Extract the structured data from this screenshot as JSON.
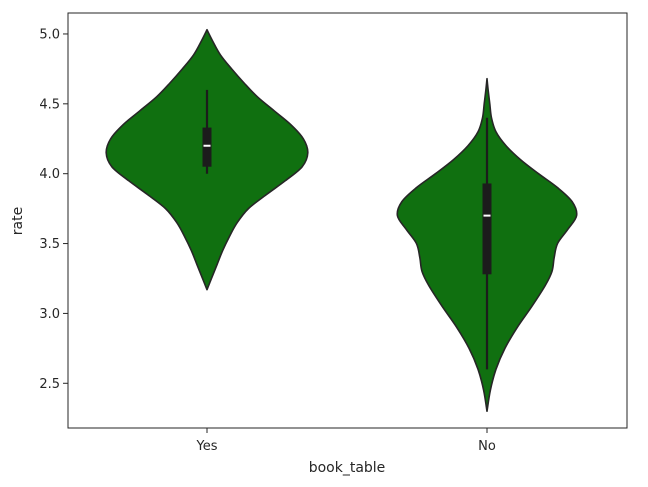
{
  "chart_data": {
    "type": "violin",
    "xlabel": "book_table",
    "ylabel": "rate",
    "categories": [
      "Yes",
      "No"
    ],
    "ylim": [
      2.18,
      5.15
    ],
    "yticks": [
      2.5,
      3.0,
      3.5,
      4.0,
      4.5,
      5.0
    ],
    "ytick_labels": [
      "2.5",
      "3.0",
      "3.5",
      "4.0",
      "4.5",
      "5.0"
    ],
    "grid": false,
    "colors": {
      "fill": "#107010",
      "edge": "#262626",
      "box": "#1c1c1c",
      "median": "#ffffff",
      "axis": "#262626"
    },
    "violins": [
      {
        "category": "Yes",
        "min": 3.17,
        "max": 5.03,
        "whisker_low": 4.0,
        "whisker_high": 4.6,
        "q1": 4.05,
        "median": 4.2,
        "q3": 4.33,
        "profile": [
          [
            3.17,
            0.0
          ],
          [
            3.25,
            0.04
          ],
          [
            3.35,
            0.09
          ],
          [
            3.45,
            0.14
          ],
          [
            3.55,
            0.2
          ],
          [
            3.65,
            0.27
          ],
          [
            3.75,
            0.37
          ],
          [
            3.85,
            0.53
          ],
          [
            3.95,
            0.7
          ],
          [
            4.05,
            0.85
          ],
          [
            4.15,
            0.9
          ],
          [
            4.25,
            0.86
          ],
          [
            4.35,
            0.75
          ],
          [
            4.45,
            0.6
          ],
          [
            4.55,
            0.45
          ],
          [
            4.65,
            0.33
          ],
          [
            4.75,
            0.22
          ],
          [
            4.85,
            0.12
          ],
          [
            4.95,
            0.05
          ],
          [
            5.03,
            0.0
          ]
        ]
      },
      {
        "category": "No",
        "min": 2.3,
        "max": 4.68,
        "whisker_low": 2.6,
        "whisker_high": 4.4,
        "q1": 3.28,
        "median": 3.7,
        "q3": 3.93,
        "profile": [
          [
            2.3,
            0.0
          ],
          [
            2.45,
            0.03
          ],
          [
            2.6,
            0.08
          ],
          [
            2.75,
            0.16
          ],
          [
            2.9,
            0.27
          ],
          [
            3.05,
            0.4
          ],
          [
            3.2,
            0.52
          ],
          [
            3.3,
            0.58
          ],
          [
            3.4,
            0.6
          ],
          [
            3.5,
            0.63
          ],
          [
            3.6,
            0.72
          ],
          [
            3.7,
            0.8
          ],
          [
            3.8,
            0.76
          ],
          [
            3.9,
            0.63
          ],
          [
            4.0,
            0.46
          ],
          [
            4.1,
            0.3
          ],
          [
            4.2,
            0.17
          ],
          [
            4.3,
            0.08
          ],
          [
            4.4,
            0.04
          ],
          [
            4.5,
            0.025
          ],
          [
            4.6,
            0.01
          ],
          [
            4.68,
            0.0
          ]
        ]
      }
    ]
  }
}
